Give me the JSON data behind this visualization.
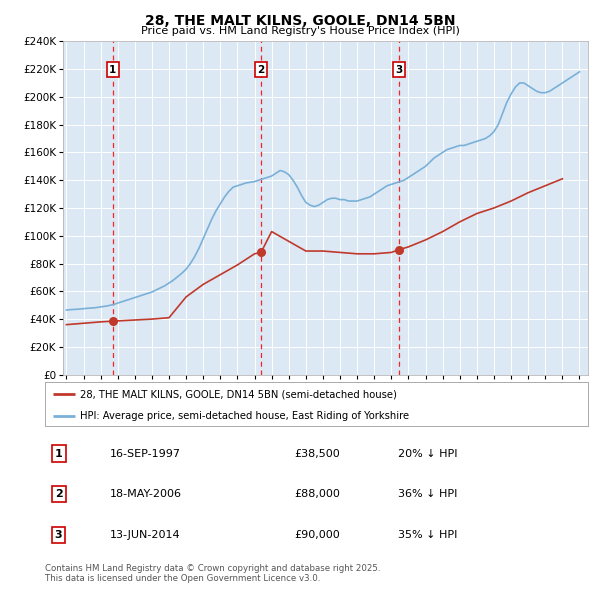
{
  "title": "28, THE MALT KILNS, GOOLE, DN14 5BN",
  "subtitle": "Price paid vs. HM Land Registry's House Price Index (HPI)",
  "fig_bg_color": "#ffffff",
  "plot_bg_color": "#dce9f5",
  "red_line_label": "28, THE MALT KILNS, GOOLE, DN14 5BN (semi-detached house)",
  "blue_line_label": "HPI: Average price, semi-detached house, East Riding of Yorkshire",
  "footer": "Contains HM Land Registry data © Crown copyright and database right 2025.\nThis data is licensed under the Open Government Licence v3.0.",
  "transactions": [
    {
      "num": 1,
      "date": "16-SEP-1997",
      "price": "£38,500",
      "hpi": "20% ↓ HPI",
      "year": 1997.71
    },
    {
      "num": 2,
      "date": "18-MAY-2006",
      "price": "£88,000",
      "hpi": "36% ↓ HPI",
      "year": 2006.38
    },
    {
      "num": 3,
      "date": "13-JUN-2014",
      "price": "£90,000",
      "hpi": "35% ↓ HPI",
      "year": 2014.45
    }
  ],
  "transaction_prices": [
    38500,
    88000,
    90000
  ],
  "hpi_years": [
    1995.0,
    1995.25,
    1995.5,
    1995.75,
    1996.0,
    1996.25,
    1996.5,
    1996.75,
    1997.0,
    1997.25,
    1997.5,
    1997.75,
    1998.0,
    1998.25,
    1998.5,
    1998.75,
    1999.0,
    1999.25,
    1999.5,
    1999.75,
    2000.0,
    2000.25,
    2000.5,
    2000.75,
    2001.0,
    2001.25,
    2001.5,
    2001.75,
    2002.0,
    2002.25,
    2002.5,
    2002.75,
    2003.0,
    2003.25,
    2003.5,
    2003.75,
    2004.0,
    2004.25,
    2004.5,
    2004.75,
    2005.0,
    2005.25,
    2005.5,
    2005.75,
    2006.0,
    2006.25,
    2006.5,
    2006.75,
    2007.0,
    2007.25,
    2007.5,
    2007.75,
    2008.0,
    2008.25,
    2008.5,
    2008.75,
    2009.0,
    2009.25,
    2009.5,
    2009.75,
    2010.0,
    2010.25,
    2010.5,
    2010.75,
    2011.0,
    2011.25,
    2011.5,
    2011.75,
    2012.0,
    2012.25,
    2012.5,
    2012.75,
    2013.0,
    2013.25,
    2013.5,
    2013.75,
    2014.0,
    2014.25,
    2014.5,
    2014.75,
    2015.0,
    2015.25,
    2015.5,
    2015.75,
    2016.0,
    2016.25,
    2016.5,
    2016.75,
    2017.0,
    2017.25,
    2017.5,
    2017.75,
    2018.0,
    2018.25,
    2018.5,
    2018.75,
    2019.0,
    2019.25,
    2019.5,
    2019.75,
    2020.0,
    2020.25,
    2020.5,
    2020.75,
    2021.0,
    2021.25,
    2021.5,
    2021.75,
    2022.0,
    2022.25,
    2022.5,
    2022.75,
    2023.0,
    2023.25,
    2023.5,
    2023.75,
    2024.0,
    2024.25,
    2024.5,
    2024.75,
    2025.0
  ],
  "hpi_values": [
    46500,
    46800,
    47000,
    47200,
    47500,
    47800,
    48000,
    48300,
    48800,
    49200,
    49800,
    50500,
    51500,
    52500,
    53500,
    54500,
    55500,
    56500,
    57500,
    58500,
    59500,
    61000,
    62500,
    64000,
    66000,
    68000,
    70500,
    73000,
    76000,
    80000,
    85000,
    91000,
    98000,
    105000,
    112000,
    118000,
    123000,
    128000,
    132000,
    135000,
    136000,
    137000,
    138000,
    138500,
    139000,
    140000,
    141000,
    142000,
    143000,
    145000,
    147000,
    146000,
    144000,
    140000,
    135000,
    129000,
    124000,
    122000,
    121000,
    122000,
    124000,
    126000,
    127000,
    127000,
    126000,
    126000,
    125000,
    125000,
    125000,
    126000,
    127000,
    128000,
    130000,
    132000,
    134000,
    136000,
    137000,
    138000,
    139000,
    140000,
    142000,
    144000,
    146000,
    148000,
    150000,
    153000,
    156000,
    158000,
    160000,
    162000,
    163000,
    164000,
    165000,
    165000,
    166000,
    167000,
    168000,
    169000,
    170000,
    172000,
    175000,
    180000,
    188000,
    196000,
    202000,
    207000,
    210000,
    210000,
    208000,
    206000,
    204000,
    203000,
    203000,
    204000,
    206000,
    208000,
    210000,
    212000,
    214000,
    216000,
    218000
  ],
  "red_years": [
    1995.0,
    1996.0,
    1997.0,
    1997.71,
    2000.0,
    2001.0,
    2002.0,
    2003.0,
    2004.0,
    2005.0,
    2006.0,
    2006.38,
    2007.0,
    2008.0,
    2009.0,
    2010.0,
    2011.0,
    2012.0,
    2013.0,
    2014.0,
    2014.45,
    2015.0,
    2016.0,
    2017.0,
    2018.0,
    2019.0,
    2020.0,
    2021.0,
    2022.0,
    2023.0,
    2024.0
  ],
  "red_values": [
    36000,
    37000,
    38000,
    38500,
    40000,
    41000,
    56000,
    65000,
    72000,
    79000,
    87000,
    88000,
    103000,
    96000,
    89000,
    89000,
    88000,
    87000,
    87000,
    88000,
    90000,
    92000,
    97000,
    103000,
    110000,
    116000,
    120000,
    125000,
    131000,
    136000,
    141000
  ],
  "ylim": [
    0,
    240000
  ],
  "xlim": [
    1994.8,
    2025.5
  ],
  "yticks": [
    0,
    20000,
    40000,
    60000,
    80000,
    100000,
    120000,
    140000,
    160000,
    180000,
    200000,
    220000,
    240000
  ]
}
